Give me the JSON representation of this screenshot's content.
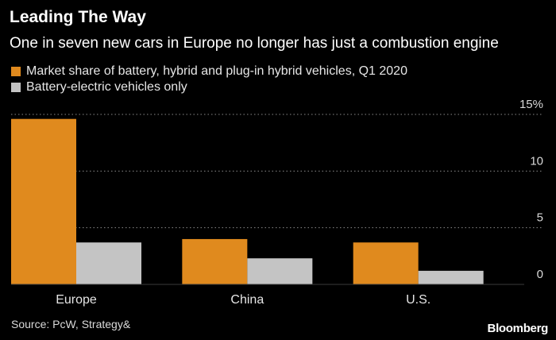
{
  "header": {
    "title": "Leading The Way",
    "subtitle": "One in seven new cars in Europe no longer has just a combustion engine"
  },
  "legend": [
    {
      "label": "Market share of battery, hybrid and plug-in hybrid vehicles, Q1 2020",
      "color": "#e08a1e"
    },
    {
      "label": "Battery-electric vehicles only",
      "color": "#c4c4c4"
    }
  ],
  "footer": {
    "source": "Source: PcW, Strategy&",
    "brand": "Bloomberg"
  },
  "chart_data": {
    "type": "bar",
    "title": "Leading The Way",
    "xlabel": "",
    "ylabel": "",
    "categories": [
      "Europe",
      "China",
      "U.S."
    ],
    "series": [
      {
        "name": "Market share of battery, hybrid and plug-in hybrid vehicles, Q1 2020",
        "color": "#e08a1e",
        "values": [
          14.6,
          4.0,
          3.7
        ]
      },
      {
        "name": "Battery-electric vehicles only",
        "color": "#c4c4c4",
        "values": [
          3.7,
          2.3,
          1.2
        ]
      }
    ],
    "ylim": [
      0,
      15
    ],
    "yticks": [
      0,
      5,
      10,
      15
    ],
    "ytick_labels": [
      "0",
      "5",
      "10",
      "15%"
    ],
    "grid": true,
    "legend_position": "top-left"
  }
}
